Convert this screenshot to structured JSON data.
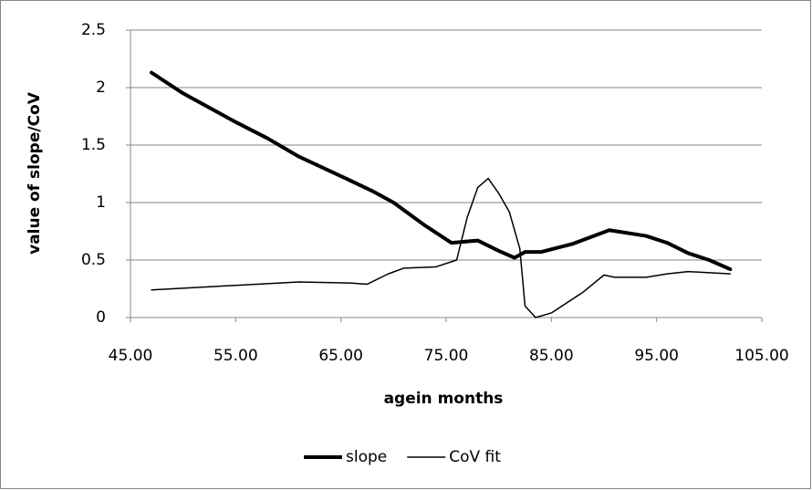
{
  "chart_data": {
    "type": "line",
    "x_label": "agein months",
    "y_label": "value of slope/CoV",
    "xlim": [
      45,
      105
    ],
    "xticks": [
      {
        "value": 45,
        "label": "45.00"
      },
      {
        "value": 55,
        "label": "55.00"
      },
      {
        "value": 65,
        "label": "65.00"
      },
      {
        "value": 75,
        "label": "75.00"
      },
      {
        "value": 85,
        "label": "85.00"
      },
      {
        "value": 95,
        "label": "95.00"
      },
      {
        "value": 105,
        "label": "105.00"
      }
    ],
    "ylim": [
      0,
      2.5
    ],
    "yticks": [
      0,
      0.5,
      1,
      1.5,
      2,
      2.5
    ],
    "grid": true,
    "legend": "bottom",
    "series": [
      {
        "name": "slope",
        "color": "#000000",
        "line_width": 4,
        "x": [
          47,
          50,
          55,
          58,
          61,
          65,
          68,
          70,
          73,
          75.5,
          78,
          80,
          81.5,
          82.5,
          84,
          87,
          90.5,
          94,
          96,
          98,
          100,
          102
        ],
        "values": [
          2.13,
          1.95,
          1.7,
          1.56,
          1.4,
          1.23,
          1.1,
          1.0,
          0.8,
          0.65,
          0.67,
          0.58,
          0.52,
          0.57,
          0.57,
          0.64,
          0.76,
          0.71,
          0.65,
          0.56,
          0.5,
          0.42
        ]
      },
      {
        "name": "CoV fit",
        "color": "#000000",
        "line_width": 1.5,
        "x": [
          47,
          55,
          61,
          66,
          67.5,
          69.5,
          71,
          74,
          76,
          77,
          78,
          79,
          80,
          81,
          82,
          82.5,
          83.5,
          85,
          88,
          90,
          91,
          94,
          96,
          98,
          102
        ],
        "values": [
          0.24,
          0.28,
          0.31,
          0.3,
          0.29,
          0.38,
          0.43,
          0.44,
          0.5,
          0.87,
          1.13,
          1.21,
          1.08,
          0.92,
          0.6,
          0.1,
          0.0,
          0.04,
          0.22,
          0.37,
          0.35,
          0.35,
          0.38,
          0.4,
          0.38
        ]
      }
    ]
  }
}
